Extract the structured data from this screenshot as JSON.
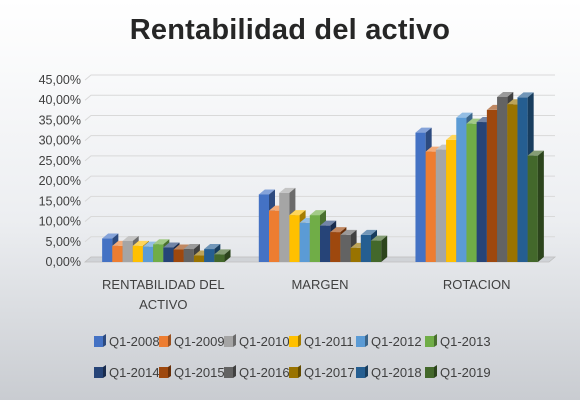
{
  "chart_data": {
    "type": "bar",
    "title": "Rentabilidad del activo",
    "categories": [
      "RENTABILIDAD DEL ACTIVO",
      "MARGEN",
      "ROTACION"
    ],
    "category_lines": [
      [
        "RENTABILIDAD DEL",
        "ACTIVO"
      ],
      [
        "MARGEN"
      ],
      [
        "ROTACION"
      ]
    ],
    "ylim": [
      0,
      45
    ],
    "yticks": [
      0,
      5,
      10,
      15,
      20,
      25,
      30,
      35,
      40,
      45
    ],
    "ytick_labels": [
      "0,00%",
      "5,00%",
      "10,00%",
      "15,00%",
      "20,00%",
      "25,00%",
      "30,00%",
      "35,00%",
      "40,00%",
      "45,00%"
    ],
    "grid": true,
    "legend_position": "bottom",
    "style": "3d-clustered-column",
    "series": [
      {
        "name": "Q1-2008",
        "color": "#4472c4",
        "values": [
          5.8,
          16.7,
          32.0
        ]
      },
      {
        "name": "Q1-2009",
        "color": "#ed7d31",
        "values": [
          4.0,
          12.7,
          27.3
        ]
      },
      {
        "name": "Q1-2010",
        "color": "#a5a5a5",
        "values": [
          5.2,
          17.1,
          27.8
        ]
      },
      {
        "name": "Q1-2011",
        "color": "#ffc000",
        "values": [
          4.0,
          11.6,
          30.2
        ]
      },
      {
        "name": "Q1-2012",
        "color": "#5b9bd5",
        "values": [
          3.8,
          9.7,
          35.7
        ]
      },
      {
        "name": "Q1-2013",
        "color": "#70ad47",
        "values": [
          4.4,
          11.6,
          34.2
        ]
      },
      {
        "name": "Q1-2014",
        "color": "#264478",
        "values": [
          3.6,
          9.0,
          34.6
        ]
      },
      {
        "name": "Q1-2015",
        "color": "#9e480e",
        "values": [
          3.1,
          7.4,
          37.6
        ]
      },
      {
        "name": "Q1-2016",
        "color": "#636363",
        "values": [
          3.2,
          6.7,
          40.8
        ]
      },
      {
        "name": "Q1-2017",
        "color": "#997300",
        "values": [
          1.6,
          3.5,
          39.0
        ]
      },
      {
        "name": "Q1-2018",
        "color": "#255e91",
        "values": [
          3.2,
          6.7,
          40.7
        ]
      },
      {
        "name": "Q1-2019",
        "color": "#43682b",
        "values": [
          1.9,
          5.3,
          26.3
        ]
      }
    ]
  }
}
